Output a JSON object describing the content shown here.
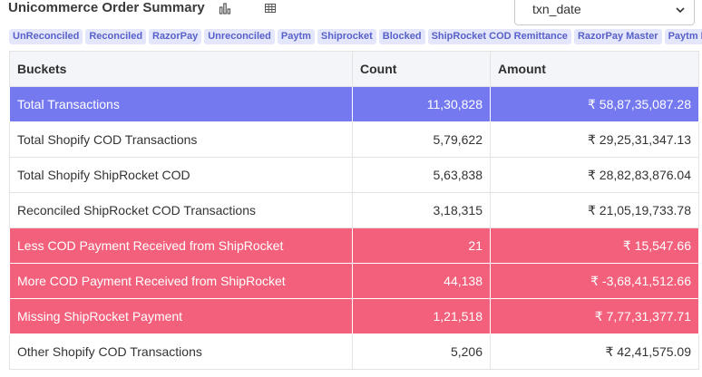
{
  "header": {
    "title": "Unicommerce Order Summary",
    "date_field_select": {
      "value": "txn_date"
    }
  },
  "filters": [
    "UnReconciled",
    "Reconciled",
    "RazorPay",
    "Unreconciled",
    "Paytm",
    "Shiprocket",
    "Blocked",
    "ShipRocket COD Remittance",
    "RazorPay Master",
    "Paytm M"
  ],
  "table": {
    "columns": [
      "Buckets",
      "Count",
      "Amount"
    ],
    "rows": [
      {
        "bucket": "Total Transactions",
        "count": "11,30,828",
        "amount": "₹ 58,87,35,087.28",
        "style": "total"
      },
      {
        "bucket": "Total Shopify COD Transactions",
        "count": "5,79,622",
        "amount": "₹ 29,25,31,347.13",
        "style": "normal"
      },
      {
        "bucket": "Total Shopify ShipRocket COD",
        "count": "5,63,838",
        "amount": "₹ 28,82,83,876.04",
        "style": "normal"
      },
      {
        "bucket": "Reconciled ShipRocket COD Transactions",
        "count": "3,18,315",
        "amount": "₹ 21,05,19,733.78",
        "style": "normal"
      },
      {
        "bucket": "Less COD Payment Received from ShipRocket",
        "count": "21",
        "amount": "₹ 15,547.66",
        "style": "alert"
      },
      {
        "bucket": "More COD Payment Received from ShipRocket",
        "count": "44,138",
        "amount": "₹ -3,68,41,512.66",
        "style": "alert"
      },
      {
        "bucket": "Missing ShipRocket Payment",
        "count": "1,21,518",
        "amount": "₹ 7,77,31,377.71",
        "style": "alert"
      },
      {
        "bucket": "Other Shopify COD Transactions",
        "count": "5,206",
        "amount": "₹ 42,41,575.09",
        "style": "normal"
      }
    ]
  },
  "colors": {
    "total_row": "#7479f0",
    "alert_row": "#f3607b",
    "chip_bg": "#e4e6fb",
    "chip_text": "#5861c9"
  },
  "icons": [
    "bar-chart-icon",
    "table-grid-icon",
    "chevron-down-icon"
  ]
}
